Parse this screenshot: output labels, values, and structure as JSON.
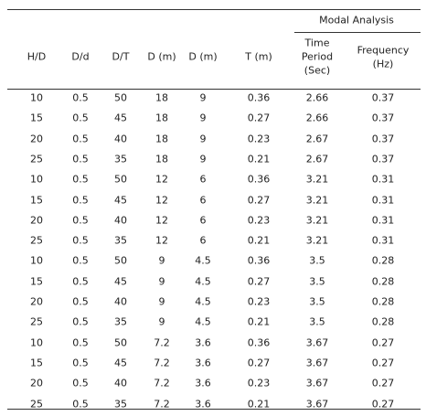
{
  "table": {
    "group_header": "Modal Analysis",
    "columns": [
      [
        "H/D"
      ],
      [
        "D/d"
      ],
      [
        "D/T"
      ],
      [
        "D (m)"
      ],
      [
        "D (m)"
      ],
      [
        "T (m)"
      ],
      [
        "Time",
        "Period",
        "(Sec)"
      ],
      [
        "Frequency",
        "(Hz)"
      ]
    ],
    "rows": [
      [
        "10",
        "0.5",
        "50",
        "18",
        "9",
        "0.36",
        "2.66",
        "0.37"
      ],
      [
        "15",
        "0.5",
        "45",
        "18",
        "9",
        "0.27",
        "2.66",
        "0.37"
      ],
      [
        "20",
        "0.5",
        "40",
        "18",
        "9",
        "0.23",
        "2.67",
        "0.37"
      ],
      [
        "25",
        "0.5",
        "35",
        "18",
        "9",
        "0.21",
        "2.67",
        "0.37"
      ],
      [
        "10",
        "0.5",
        "50",
        "12",
        "6",
        "0.36",
        "3.21",
        "0.31"
      ],
      [
        "15",
        "0.5",
        "45",
        "12",
        "6",
        "0.27",
        "3.21",
        "0.31"
      ],
      [
        "20",
        "0.5",
        "40",
        "12",
        "6",
        "0.23",
        "3.21",
        "0.31"
      ],
      [
        "25",
        "0.5",
        "35",
        "12",
        "6",
        "0.21",
        "3.21",
        "0.31"
      ],
      [
        "10",
        "0.5",
        "50",
        "9",
        "4.5",
        "0.36",
        "3.5",
        "0.28"
      ],
      [
        "15",
        "0.5",
        "45",
        "9",
        "4.5",
        "0.27",
        "3.5",
        "0.28"
      ],
      [
        "20",
        "0.5",
        "40",
        "9",
        "4.5",
        "0.23",
        "3.5",
        "0.28"
      ],
      [
        "25",
        "0.5",
        "35",
        "9",
        "4.5",
        "0.21",
        "3.5",
        "0.28"
      ],
      [
        "10",
        "0.5",
        "50",
        "7.2",
        "3.6",
        "0.36",
        "3.67",
        "0.27"
      ],
      [
        "15",
        "0.5",
        "45",
        "7.2",
        "3.6",
        "0.27",
        "3.67",
        "0.27"
      ],
      [
        "20",
        "0.5",
        "40",
        "7.2",
        "3.6",
        "0.23",
        "3.67",
        "0.27"
      ],
      [
        "25",
        "0.5",
        "35",
        "7.2",
        "3.6",
        "0.21",
        "3.67",
        "0.27"
      ]
    ]
  }
}
